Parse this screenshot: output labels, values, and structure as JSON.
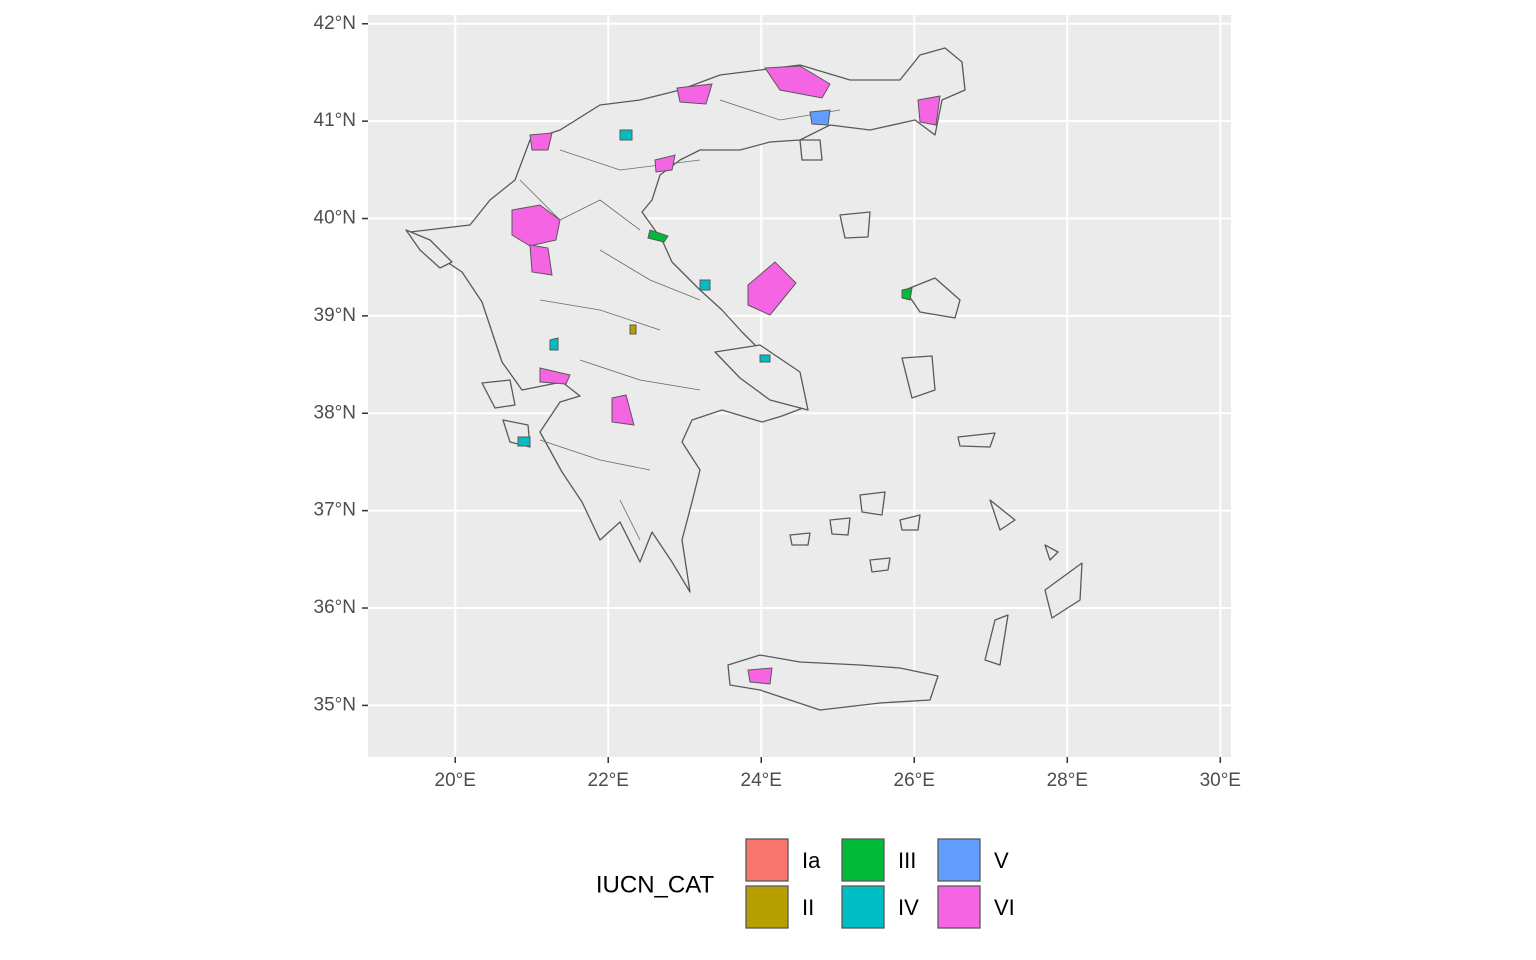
{
  "chart_data": {
    "type": "map",
    "xlim": [
      18.86,
      30.14
    ],
    "ylim": [
      34.47,
      42.09
    ],
    "xticks": [
      {
        "value": 20,
        "label": "20°E"
      },
      {
        "value": 22,
        "label": "22°E"
      },
      {
        "value": 24,
        "label": "24°E"
      },
      {
        "value": 26,
        "label": "26°E"
      },
      {
        "value": 28,
        "label": "28°E"
      },
      {
        "value": 30,
        "label": "30°E"
      }
    ],
    "yticks": [
      {
        "value": 35,
        "label": "35°N"
      },
      {
        "value": 36,
        "label": "36°N"
      },
      {
        "value": 37,
        "label": "37°N"
      },
      {
        "value": 38,
        "label": "38°N"
      },
      {
        "value": 39,
        "label": "39°N"
      },
      {
        "value": 40,
        "label": "40°N"
      },
      {
        "value": 41,
        "label": "41°N"
      },
      {
        "value": 42,
        "label": "42°N"
      }
    ],
    "grid": true,
    "legend": {
      "title": "IUCN_CAT",
      "position": "bottom",
      "series": [
        {
          "name": "Ia",
          "color": "#F8766D"
        },
        {
          "name": "II",
          "color": "#B79F00"
        },
        {
          "name": "III",
          "color": "#00BA38"
        },
        {
          "name": "IV",
          "color": "#00BFC4"
        },
        {
          "name": "V",
          "color": "#619CFF"
        },
        {
          "name": "VI",
          "color": "#F564E3"
        }
      ]
    }
  }
}
